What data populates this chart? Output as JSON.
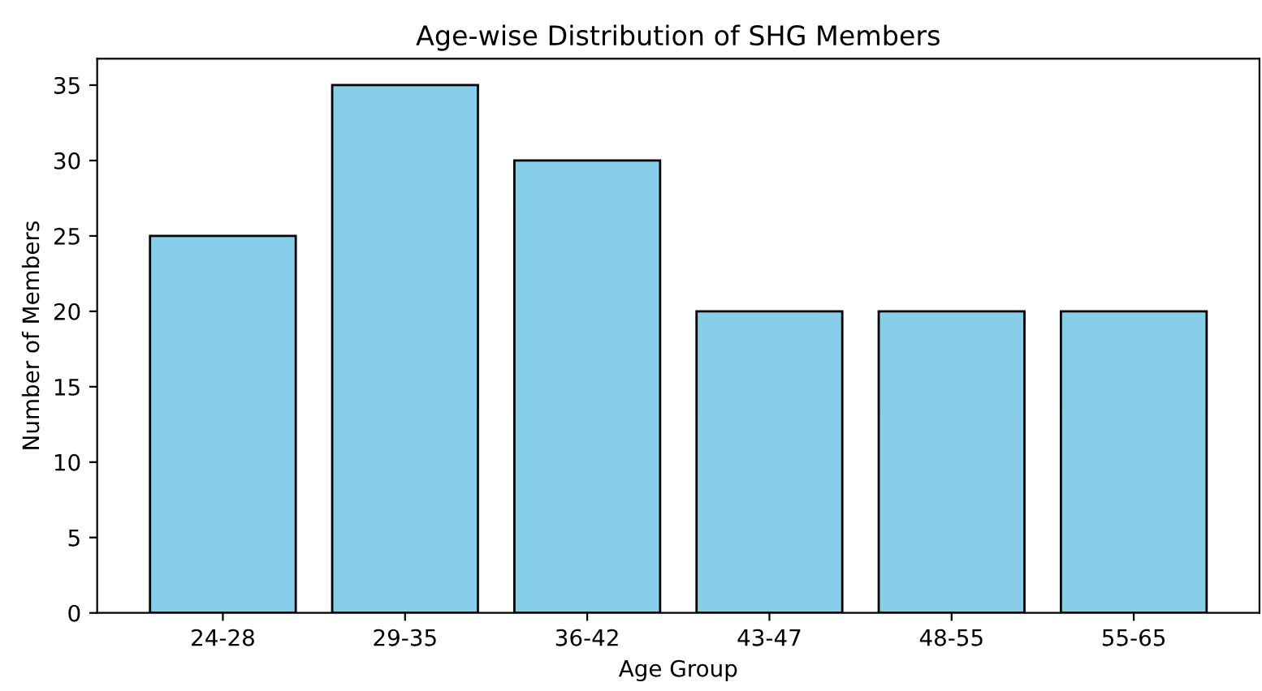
{
  "chart_data": {
    "type": "bar",
    "title": "Age-wise Distribution of SHG Members",
    "xlabel": "Age Group",
    "ylabel": "Number of Members",
    "categories": [
      "24-28",
      "29-35",
      "36-42",
      "43-47",
      "48-55",
      "55-65"
    ],
    "values": [
      25,
      35,
      30,
      20,
      20,
      20
    ],
    "color": "#87ceeb",
    "ylim": [
      0,
      36.75
    ],
    "yticks": [
      0,
      5,
      10,
      15,
      20,
      25,
      30,
      35
    ],
    "grid": false,
    "legend": false
  }
}
